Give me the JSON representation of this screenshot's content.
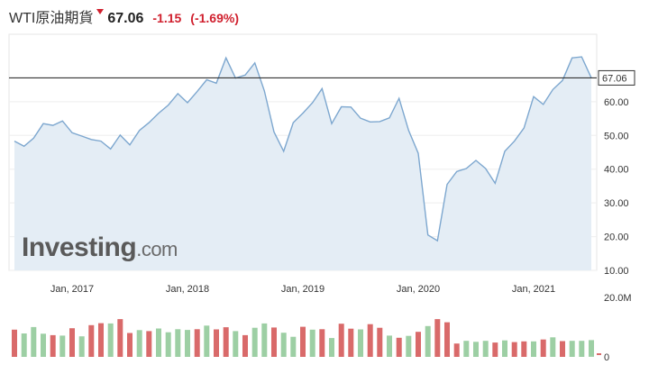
{
  "header": {
    "instrument": "WTI原油期貨",
    "price": "67.06",
    "change": "-1.15",
    "change_pct": "(-1.69%)",
    "down_color": "#d0202e"
  },
  "watermark": {
    "brand": "Investing",
    "suffix": ".com"
  },
  "chart_data": {
    "type": "area",
    "title": "WTI原油期貨",
    "x_ticks": [
      "Jan, 2017",
      "Jan, 2018",
      "Jan, 2019",
      "Jan, 2020",
      "Jan, 2021"
    ],
    "x_range": [
      "2016-07",
      "2021-07"
    ],
    "y_ticks": [
      "10.00",
      "20.00",
      "30.00",
      "40.00",
      "50.00",
      "60.00"
    ],
    "ylim": [
      10,
      80
    ],
    "last_price_label": "67.06",
    "last_price": 67.06,
    "grid": true,
    "line_color": "#7da7cf",
    "fill_color": "#e4edf5",
    "series": [
      {
        "x": [
          "2016-07",
          "2016-08",
          "2016-09",
          "2016-10",
          "2016-11",
          "2016-12",
          "2017-01",
          "2017-02",
          "2017-03",
          "2017-04",
          "2017-05",
          "2017-06",
          "2017-07",
          "2017-08",
          "2017-09",
          "2017-10",
          "2017-11",
          "2017-12",
          "2018-01",
          "2018-02",
          "2018-03",
          "2018-04",
          "2018-05",
          "2018-06",
          "2018-07",
          "2018-08",
          "2018-09",
          "2018-10",
          "2018-11",
          "2018-12",
          "2019-01",
          "2019-02",
          "2019-03",
          "2019-04",
          "2019-05",
          "2019-06",
          "2019-07",
          "2019-08",
          "2019-09",
          "2019-10",
          "2019-11",
          "2019-12",
          "2020-01",
          "2020-02",
          "2020-03",
          "2020-04",
          "2020-05",
          "2020-06",
          "2020-07",
          "2020-08",
          "2020-09",
          "2020-10",
          "2020-11",
          "2020-12",
          "2021-01",
          "2021-02",
          "2021-03",
          "2021-04",
          "2021-05",
          "2021-06",
          "2021-07"
        ],
        "values": [
          48.3,
          46.8,
          49.2,
          53.5,
          53.0,
          54.3,
          50.8,
          49.8,
          48.8,
          48.3,
          46.0,
          50.1,
          47.2,
          51.5,
          53.8,
          56.6,
          59.0,
          62.4,
          59.7,
          63.0,
          66.5,
          65.5,
          73.0,
          67.0,
          67.9,
          71.5,
          63.2,
          51.0,
          45.3,
          53.8,
          56.6,
          59.7,
          63.9,
          53.5,
          58.5,
          58.4,
          55.1,
          54.0,
          54.1,
          55.2,
          61.0,
          51.5,
          44.7,
          20.5,
          18.8,
          35.5,
          39.3,
          40.2,
          42.6,
          40.2,
          35.8,
          45.3,
          48.3,
          52.2,
          61.5,
          59.2,
          63.6,
          66.3,
          73.0,
          73.3,
          67.06
        ]
      }
    ],
    "volume": {
      "tick_top": "20.0M",
      "tick_bottom": "0",
      "max": 20,
      "up_color": "#9dcfa4",
      "down_color": "#d96a6a",
      "values": [
        11.4,
        9.8,
        12.5,
        9.7,
        9.1,
        8.9,
        12.0,
        8.6,
        13.3,
        14.1,
        14.0,
        15.8,
        10.0,
        11.2,
        10.8,
        11.9,
        10.3,
        11.6,
        11.3,
        11.6,
        13.1,
        11.5,
        12.4,
        10.8,
        9.1,
        12.2,
        14.0,
        12.3,
        10.1,
        8.4,
        12.6,
        11.4,
        11.6,
        7.9,
        13.9,
        11.8,
        11.5,
        13.7,
        12.2,
        8.9,
        8.0,
        8.8,
        10.5,
        12.9,
        15.8,
        14.5,
        5.6,
        6.7,
        6.3,
        6.7,
        6.0,
        6.9,
        6.2,
        6.5,
        6.5,
        7.3,
        8.2,
        6.6,
        6.7,
        6.7,
        7.0
      ],
      "up": [
        false,
        true,
        true,
        true,
        false,
        true,
        false,
        true,
        false,
        false,
        true,
        false,
        false,
        true,
        false,
        true,
        true,
        true,
        true,
        false,
        true,
        false,
        false,
        true,
        false,
        true,
        true,
        false,
        true,
        true,
        false,
        true,
        false,
        true,
        false,
        false,
        true,
        false,
        false,
        true,
        false,
        true,
        false,
        true,
        false,
        false,
        false,
        true,
        true,
        true,
        false,
        true,
        false,
        false,
        true,
        false,
        true,
        false,
        true,
        true,
        true
      ]
    }
  }
}
